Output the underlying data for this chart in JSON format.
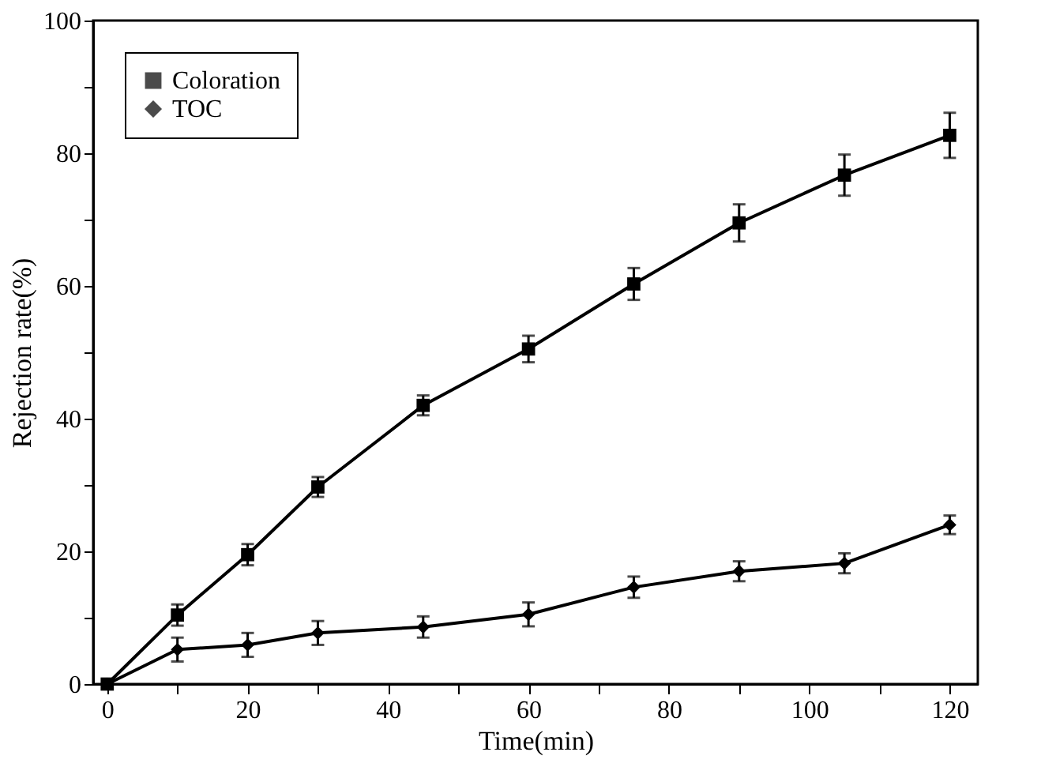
{
  "chart_data": {
    "type": "line",
    "xlabel": "Time(min)",
    "ylabel": "Rejection rate(%)",
    "x": [
      0,
      10,
      20,
      30,
      45,
      60,
      75,
      90,
      105,
      120
    ],
    "series": [
      {
        "name": "Coloration",
        "color": "#000000",
        "marker": "square",
        "values": [
          0,
          10.4,
          19.5,
          29.7,
          42.0,
          50.5,
          60.3,
          69.5,
          76.7,
          82.7
        ],
        "errors": [
          null,
          1.6,
          1.6,
          1.5,
          1.5,
          2.0,
          2.4,
          2.8,
          3.1,
          3.4
        ]
      },
      {
        "name": "TOC",
        "color": "#000000",
        "marker": "diamond",
        "values": [
          0,
          5.2,
          5.9,
          7.7,
          8.6,
          10.5,
          14.6,
          17.0,
          18.2,
          24.0
        ],
        "errors": [
          null,
          1.8,
          1.8,
          1.8,
          1.6,
          1.8,
          1.6,
          1.5,
          1.5,
          1.4
        ]
      }
    ],
    "xlim": [
      -2,
      124
    ],
    "ylim": [
      0,
      100
    ],
    "xticks": [
      0,
      {
        "value": 10,
        "label": null
      },
      20,
      {
        "value": 30,
        "label": null
      },
      40,
      {
        "value": 50,
        "label": null
      },
      60,
      {
        "value": 70,
        "label": null
      },
      80,
      {
        "value": 90,
        "label": null
      },
      100,
      {
        "value": 110,
        "label": null
      },
      120
    ],
    "yticks": [
      0,
      {
        "value": 10,
        "label": null
      },
      20,
      {
        "value": 30,
        "label": null
      },
      40,
      {
        "value": 50,
        "label": null
      },
      60,
      {
        "value": 70,
        "label": null
      },
      80,
      {
        "value": 90,
        "label": null
      },
      100
    ],
    "grid": false,
    "legend": "top left",
    "line_style": "solid"
  }
}
